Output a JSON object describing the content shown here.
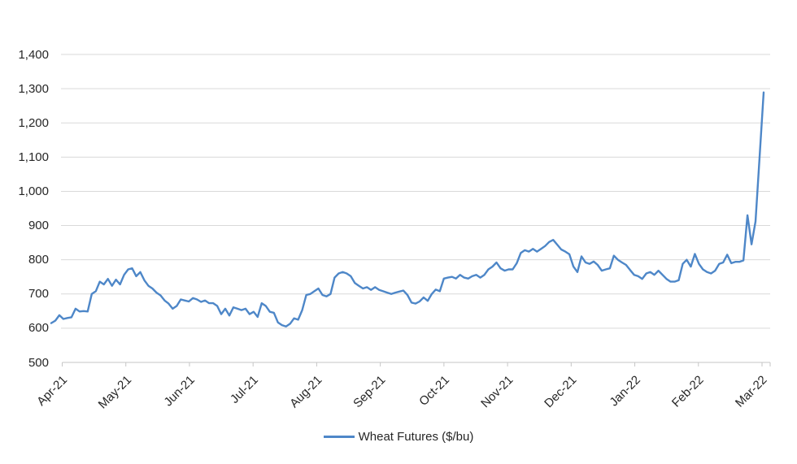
{
  "chart": {
    "legend": {
      "label": "Wheat Futures ($/bu)"
    },
    "colors": {
      "line": "#4e87c8",
      "gridline": "#d9d9d9",
      "axis_line": "#c6c6c6",
      "text": "#262626",
      "background": "#ffffff"
    }
  },
  "chart_data": {
    "type": "line",
    "title": "",
    "xlabel": "",
    "ylabel": "",
    "grid": "horizontal",
    "legend_position": "bottom",
    "ylim": [
      500,
      1400
    ],
    "y_step": 100,
    "y_tick_labels": [
      "500",
      "600",
      "700",
      "800",
      "900",
      "1,000",
      "1,100",
      "1,200",
      "1,300",
      "1,400"
    ],
    "x_tick_labels": [
      "Apr-21",
      "May-21",
      "Jun-21",
      "Jul-21",
      "Aug-21",
      "Sep-21",
      "Oct-21",
      "Nov-21",
      "Dec-21",
      "Jan-22",
      "Feb-22",
      "Mar-22"
    ],
    "series": [
      {
        "name": "Wheat Futures ($/bu)",
        "color": "#4e87c8",
        "values": [
          615,
          622,
          638,
          627,
          630,
          632,
          657,
          649,
          650,
          649,
          700,
          708,
          736,
          728,
          744,
          724,
          742,
          728,
          756,
          772,
          775,
          752,
          764,
          740,
          724,
          716,
          704,
          696,
          681,
          672,
          657,
          665,
          684,
          681,
          678,
          688,
          684,
          677,
          681,
          673,
          673,
          665,
          641,
          657,
          637,
          661,
          657,
          653,
          657,
          641,
          648,
          633,
          673,
          665,
          648,
          645,
          617,
          609,
          605,
          613,
          629,
          625,
          653,
          697,
          700,
          708,
          716,
          697,
          693,
          700,
          748,
          760,
          764,
          760,
          752,
          732,
          724,
          716,
          720,
          712,
          720,
          712,
          708,
          704,
          700,
          704,
          707,
          710,
          697,
          675,
          672,
          678,
          690,
          680,
          700,
          713,
          708,
          745,
          748,
          750,
          745,
          756,
          748,
          745,
          752,
          756,
          748,
          756,
          772,
          780,
          792,
          775,
          768,
          772,
          772,
          790,
          820,
          828,
          824,
          832,
          824,
          832,
          840,
          852,
          858,
          844,
          830,
          824,
          816,
          780,
          764,
          810,
          792,
          788,
          795,
          785,
          768,
          772,
          775,
          812,
          800,
          792,
          785,
          770,
          756,
          752,
          744,
          760,
          764,
          756,
          768,
          756,
          744,
          736,
          736,
          740,
          788,
          800,
          780,
          817,
          788,
          772,
          764,
          760,
          768,
          788,
          792,
          815,
          790,
          794,
          794,
          798,
          930,
          845,
          912,
          1100,
          1289
        ]
      }
    ]
  }
}
